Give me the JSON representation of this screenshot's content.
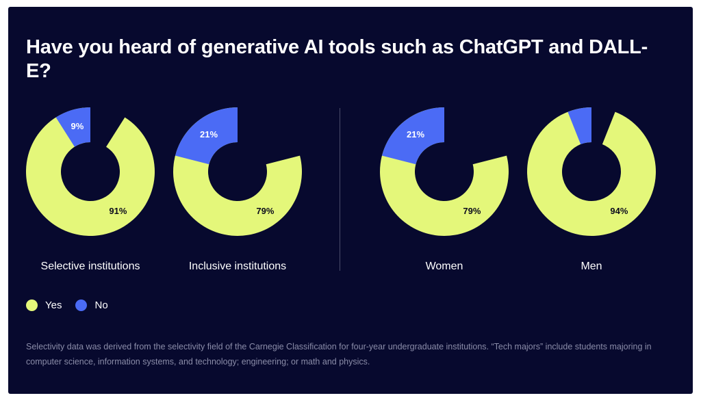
{
  "title": "Have you heard of generative AI tools such as ChatGPT and DALL-E?",
  "legend": {
    "yes_label": "Yes",
    "no_label": "No"
  },
  "colors": {
    "yes": "#e4f77a",
    "no": "#4b6bf5",
    "background": "#07092e"
  },
  "footnote": "Selectivity data was derived from the selectivity field of the Carnegie Classification for four-year undergraduate institutions. “Tech majors” include students majoring in computer science, information systems, and technology; engineering; or math and physics.",
  "chart_data": {
    "type": "pie",
    "variant": "donut",
    "title": "Have you heard of generative AI tools such as ChatGPT and DALL-E?",
    "series_names": [
      "Yes",
      "No"
    ],
    "charts": [
      {
        "label": "Selective institutions",
        "yes": 91,
        "no": 9,
        "yes_text": "91%",
        "no_text": "9%"
      },
      {
        "label": "Inclusive institutions",
        "yes": 79,
        "no": 21,
        "yes_text": "79%",
        "no_text": "21%"
      },
      {
        "label": "Women",
        "yes": 79,
        "no": 21,
        "yes_text": "79%",
        "no_text": "21%"
      },
      {
        "label": "Men",
        "yes": 94,
        "no": 6,
        "yes_text": "94%",
        "no_text": ""
      }
    ]
  }
}
